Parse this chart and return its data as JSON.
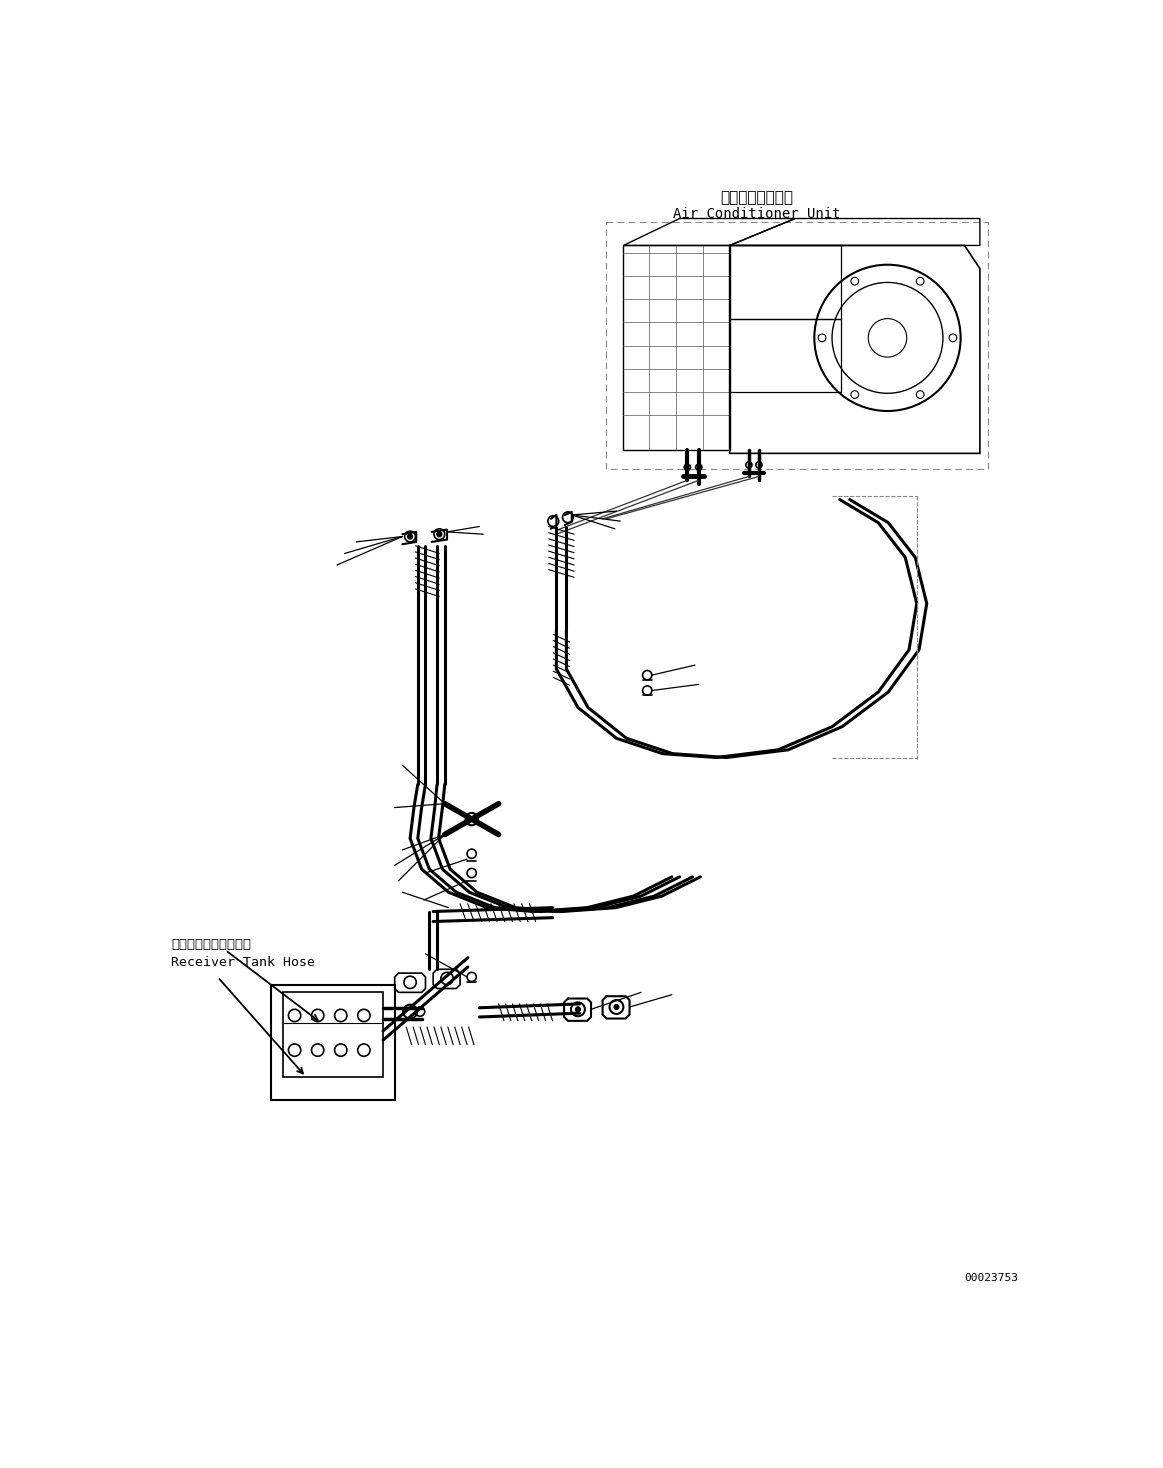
{
  "bg_color": "#ffffff",
  "line_color": "#000000",
  "fig_width": 11.63,
  "fig_height": 14.68,
  "dpi": 100,
  "title_jp": "エアコンユニット",
  "title_en": "Air Conditioner Unit",
  "label_jp": "レシーバタンクホース",
  "label_en": "Receiver Tank Hose",
  "doc_number": "00023753"
}
